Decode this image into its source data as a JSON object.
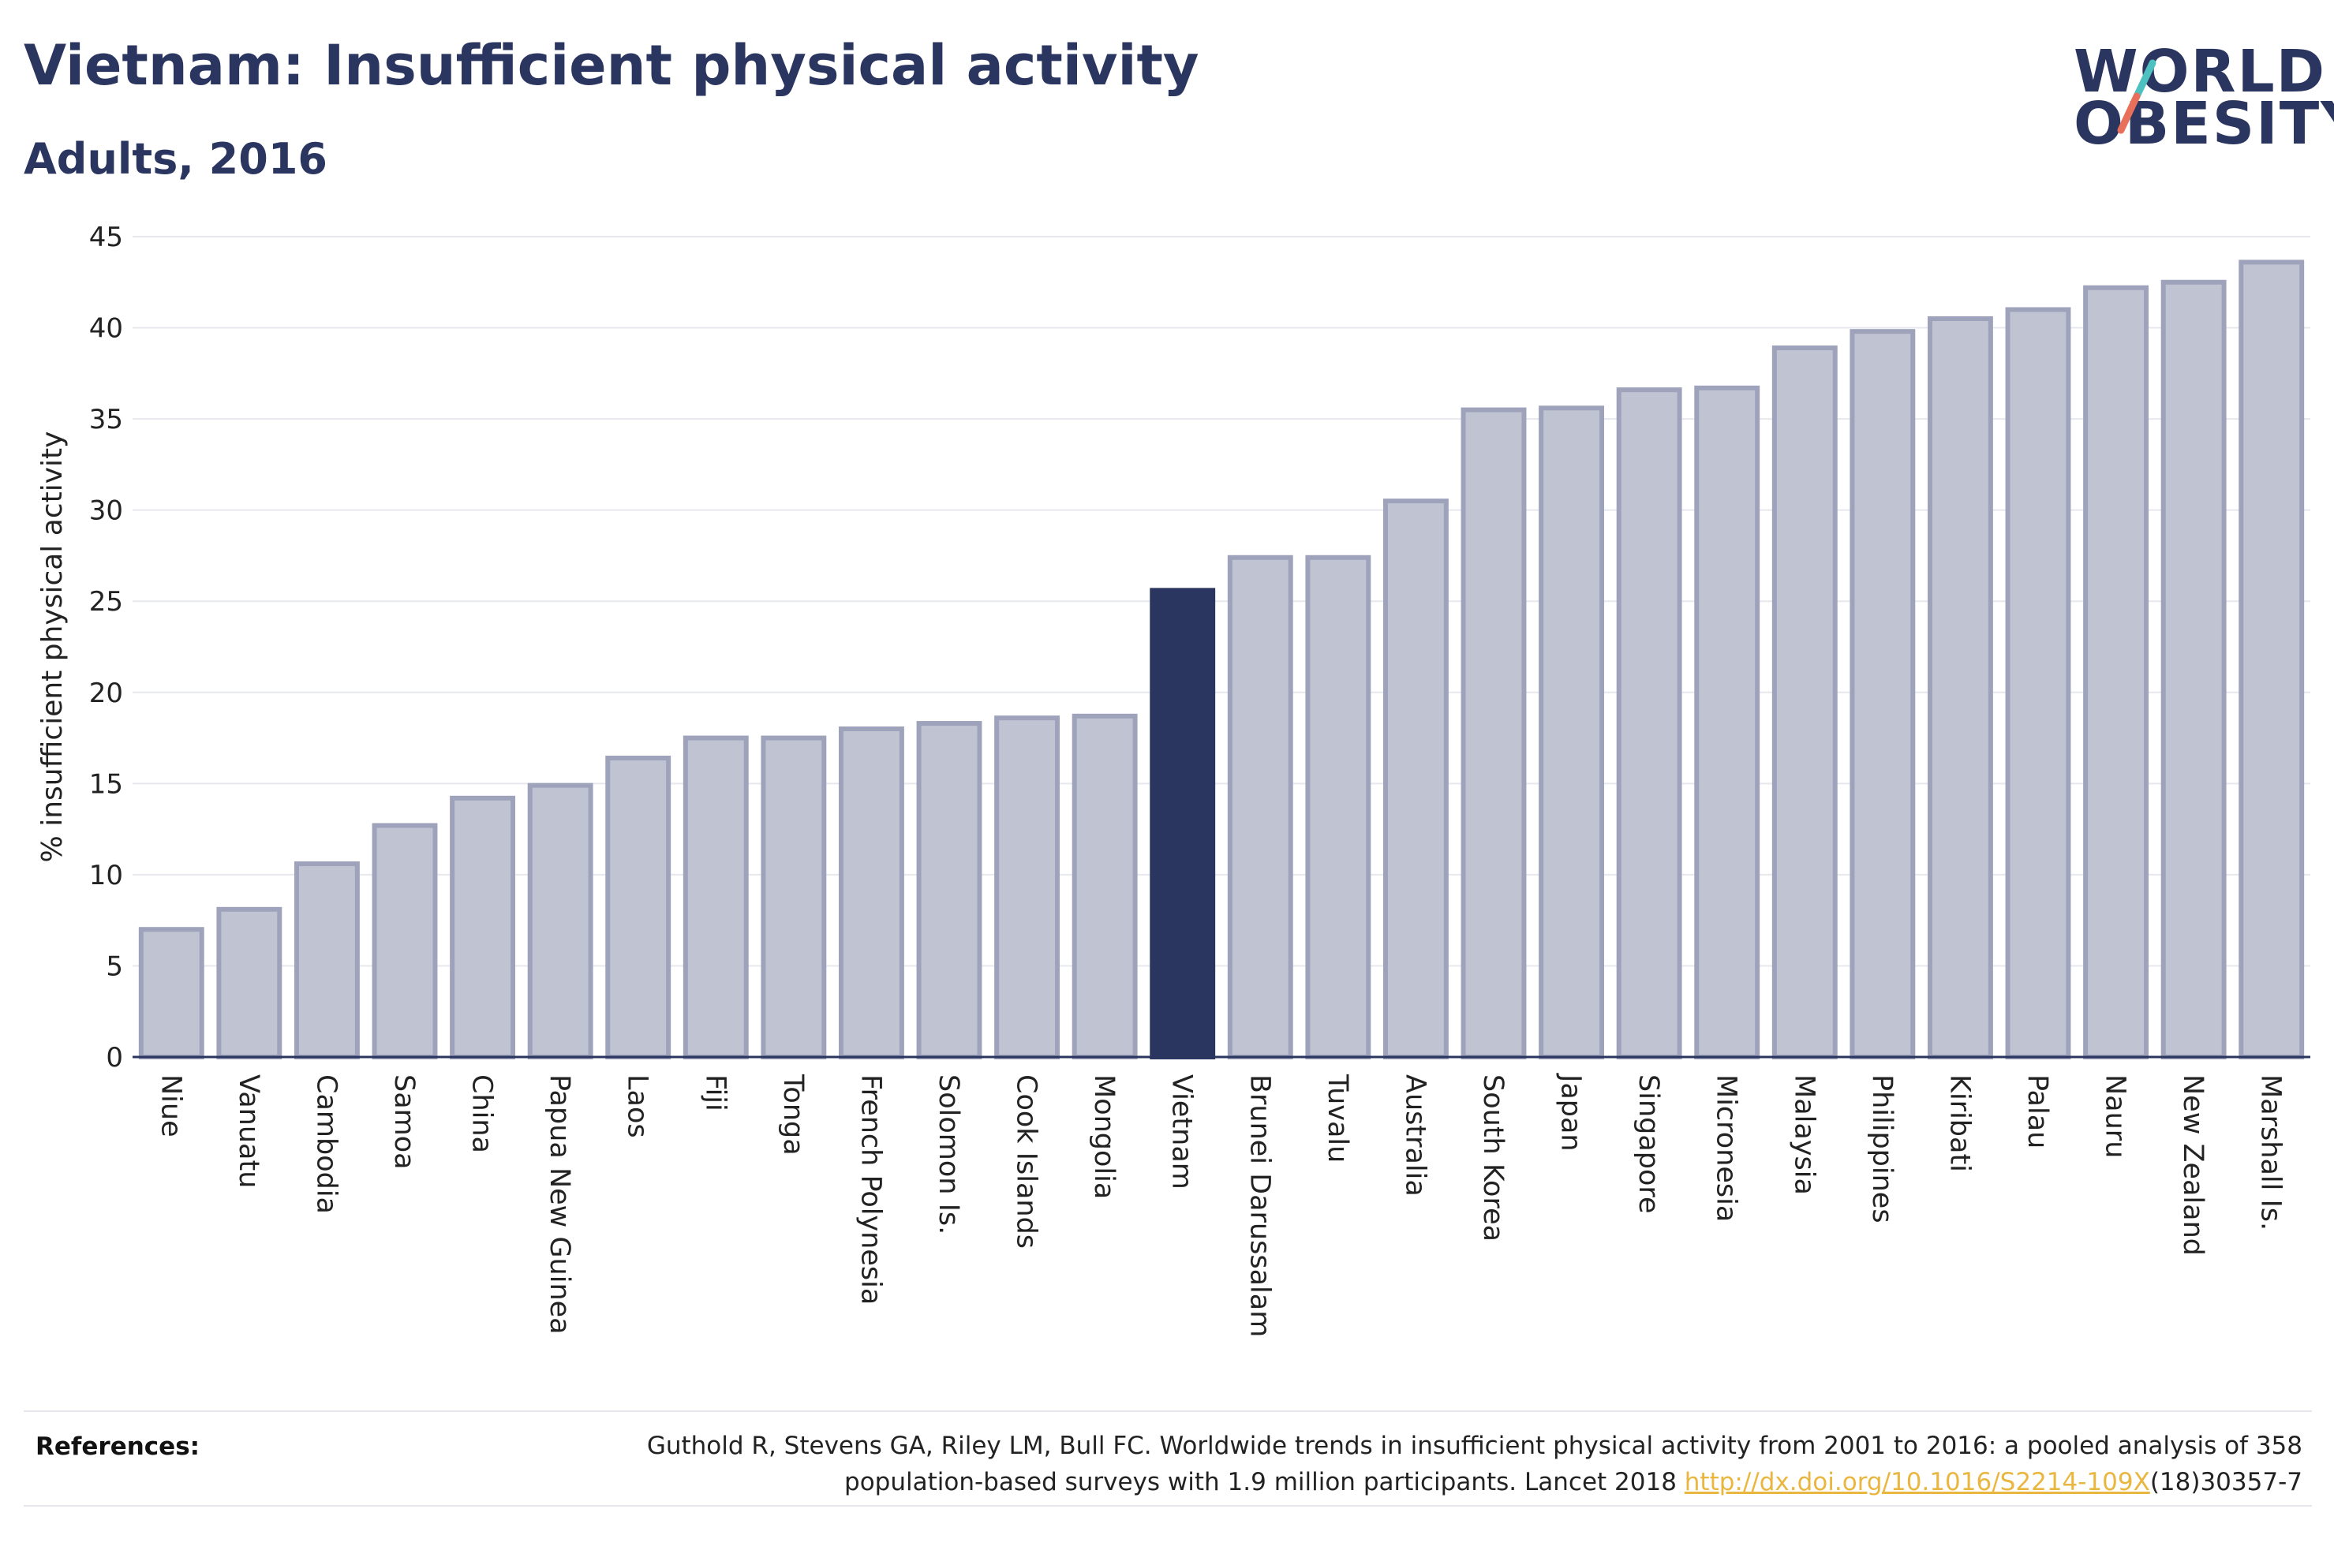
{
  "header": {
    "title": "Vietnam: Insufficient physical activity",
    "subtitle": "Adults, 2016"
  },
  "logo": {
    "line1": "WORLD",
    "line2": "OBESITY",
    "accent_colors": [
      "#4fc0c0",
      "#e8705a"
    ]
  },
  "colors": {
    "bar_default": "#bfc3d2",
    "bar_stroke": "#9ea3bb",
    "bar_highlight": "#2b3660",
    "text_dark": "#2b3660",
    "link": "#e9b73f"
  },
  "chart_data": {
    "type": "bar",
    "ylabel": "% insufficient physical activity",
    "ylim": [
      0,
      45
    ],
    "yticks": [
      0,
      5,
      10,
      15,
      20,
      25,
      30,
      35,
      40,
      45
    ],
    "grid": true,
    "highlight": "Vietnam",
    "categories": [
      "Niue",
      "Vanuatu",
      "Cambodia",
      "Samoa",
      "China",
      "Papua New Guinea",
      "Laos",
      "Fiji",
      "Tonga",
      "French Polynesia",
      "Solomon Is.",
      "Cook Islands",
      "Mongolia",
      "Vietnam",
      "Brunei Darussalam",
      "Tuvalu",
      "Australia",
      "South Korea",
      "Japan",
      "Singapore",
      "Micronesia",
      "Malaysia",
      "Philippines",
      "Kiribati",
      "Palau",
      "Nauru",
      "New Zealand",
      "Marshall Is."
    ],
    "values": [
      7.0,
      8.1,
      10.6,
      12.7,
      14.2,
      14.9,
      16.4,
      17.5,
      17.5,
      18.0,
      18.3,
      18.6,
      18.7,
      25.6,
      27.4,
      27.4,
      30.5,
      35.5,
      35.6,
      36.6,
      36.7,
      38.9,
      39.8,
      40.5,
      41.0,
      42.2,
      42.5,
      43.6
    ]
  },
  "references": {
    "label": "References:",
    "line1": "Guthold R, Stevens GA, Riley LM, Bull FC. Worldwide trends in insufficient physical activity from 2001 to 2016: a pooled analysis of 358",
    "line2_pre": "population-based surveys with 1.9 million participants. Lancet 2018 ",
    "link": "http://dx.doi.org/10.1016/S2214-109X",
    "line2_post": "(18)30357-7"
  }
}
